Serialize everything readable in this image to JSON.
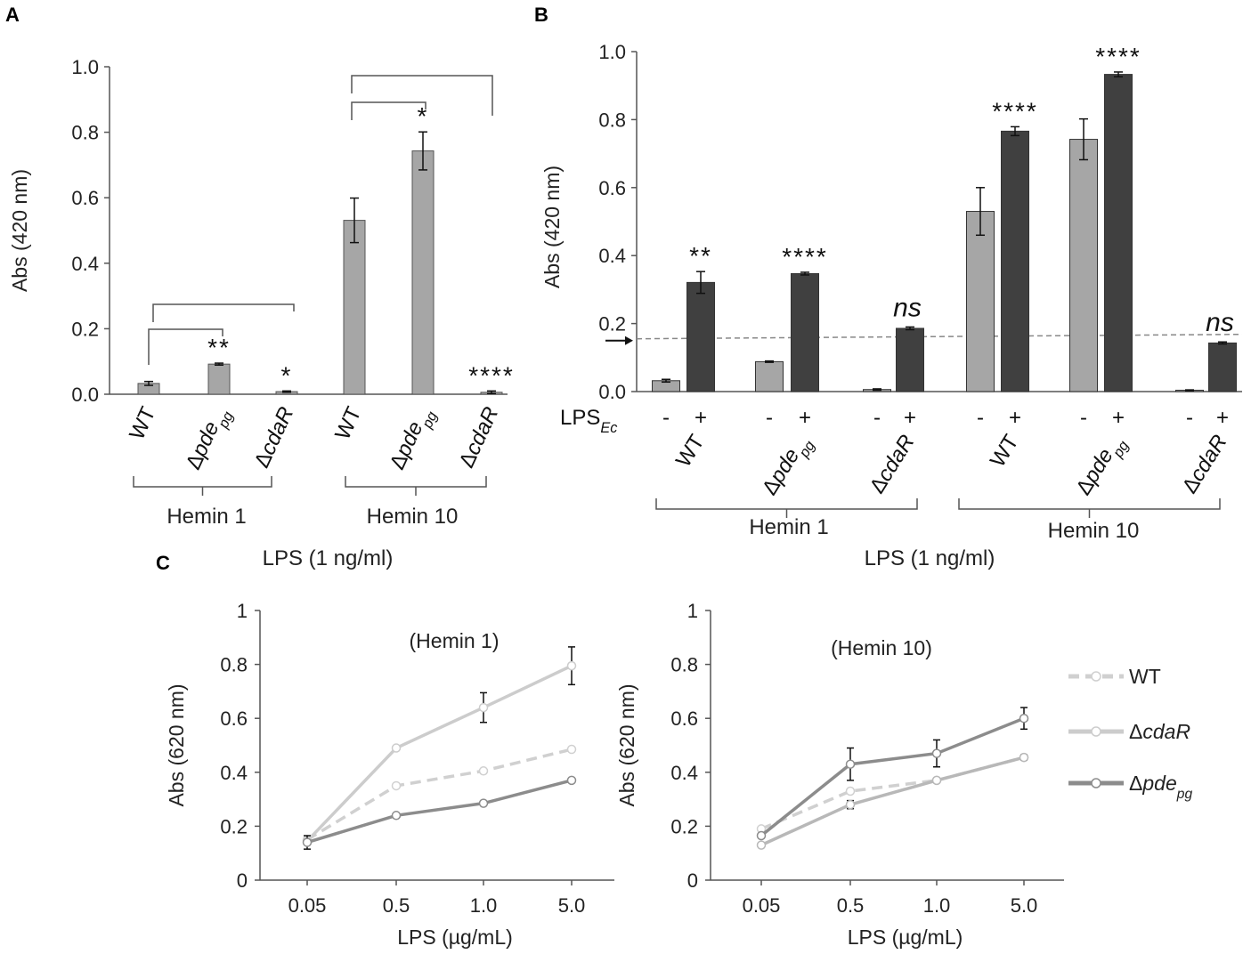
{
  "figure": {
    "panel_a_letter": "A",
    "panel_b_letter": "B",
    "panel_c_letter": "C"
  },
  "chart_data": [
    {
      "panel": "A",
      "type": "bar",
      "ylabel": "Abs (420 nm)",
      "ylim": [
        0,
        1.0
      ],
      "yticks": [
        "0.0",
        "0.2",
        "0.4",
        "0.6",
        "0.8",
        "1.0"
      ],
      "xlabel": "LPS (1 ng/ml)",
      "bar_color": "#a6a6a6",
      "bars": [
        {
          "label": "WT",
          "sub": "",
          "group": "Hemin 1",
          "value": 0.033,
          "err": 0.006,
          "sig": ""
        },
        {
          "label": "Δpde",
          "sub": "pg",
          "group": "Hemin 1",
          "value": 0.092,
          "err": 0.003,
          "sig": "**"
        },
        {
          "label": "ΔcdaR",
          "sub": "",
          "group": "Hemin 1",
          "value": 0.008,
          "err": 0.002,
          "sig": "*"
        },
        {
          "label": "WT",
          "sub": "",
          "group": "Hemin 10",
          "value": 0.531,
          "err": 0.068,
          "sig": ""
        },
        {
          "label": "Δpde",
          "sub": "pg",
          "group": "Hemin 10",
          "value": 0.743,
          "err": 0.058,
          "sig": "*"
        },
        {
          "label": "ΔcdaR",
          "sub": "",
          "group": "Hemin 10",
          "value": 0.006,
          "err": 0.004,
          "sig": "****"
        }
      ],
      "groups": [
        "Hemin 1",
        "Hemin 10"
      ]
    },
    {
      "panel": "B",
      "type": "bar",
      "ylabel": "Abs (420 nm)",
      "ylim": [
        0,
        1.0
      ],
      "yticks": [
        "0.0",
        "0.2",
        "0.4",
        "0.6",
        "0.8",
        "1.0"
      ],
      "xlabel": "LPS (1 ng/ml)",
      "lps_label": "LPS",
      "lps_sub": "Ec",
      "threshold": 0.15,
      "series": [
        {
          "name": "-",
          "color": "#a6a6a6",
          "values": [
            0.032,
            0.088,
            0.006,
            0.53,
            0.742,
            0.004
          ],
          "err": [
            0.004,
            0.002,
            0.002,
            0.07,
            0.06,
            0.001
          ]
        },
        {
          "name": "+",
          "color": "#404040",
          "values": [
            0.321,
            0.347,
            0.186,
            0.766,
            0.933,
            0.143
          ],
          "err": [
            0.032,
            0.004,
            0.004,
            0.013,
            0.007,
            0.003
          ]
        }
      ],
      "categories": [
        {
          "label": "WT",
          "sub": ""
        },
        {
          "label": "Δpde",
          "sub": "pg"
        },
        {
          "label": "ΔcdaR",
          "sub": ""
        },
        {
          "label": "WT",
          "sub": ""
        },
        {
          "label": "Δpde",
          "sub": "pg"
        },
        {
          "label": "ΔcdaR",
          "sub": ""
        }
      ],
      "sig": [
        "**",
        "****",
        "ns",
        "****",
        "****",
        "ns"
      ],
      "groups": [
        "Hemin 1",
        "Hemin 10"
      ]
    },
    {
      "panel": "C1",
      "type": "line",
      "title": "(Hemin 1)",
      "ylabel": "Abs (620 nm)",
      "xlabel": "LPS (µg/mL)",
      "x": [
        "0.05",
        "0.5",
        "1.0",
        "5.0"
      ],
      "ylim": [
        0,
        1
      ],
      "yticks": [
        "0",
        "0.2",
        "0.4",
        "0.6",
        "0.8",
        "1"
      ],
      "series": [
        {
          "name": "WT",
          "color": "#d0d0d0",
          "dash": true,
          "values": [
            0.15,
            0.35,
            0.405,
            0.485
          ],
          "err": [
            0,
            0,
            0,
            0
          ]
        },
        {
          "name": "ΔcdaR",
          "color": "#cccccc",
          "dash": false,
          "values": [
            0.145,
            0.49,
            0.64,
            0.795
          ],
          "err": [
            0,
            0,
            0.055,
            0.07
          ]
        },
        {
          "name": "Δpde",
          "color": "#8c8c8c",
          "dash": false,
          "values": [
            0.14,
            0.24,
            0.285,
            0.37
          ],
          "err": [
            0.025,
            0,
            0,
            0
          ]
        }
      ]
    },
    {
      "panel": "C2",
      "type": "line",
      "title": "(Hemin 10)",
      "ylabel": "Abs (620 nm)",
      "xlabel": "LPS (µg/mL)",
      "x": [
        "0.05",
        "0.5",
        "1.0",
        "5.0"
      ],
      "ylim": [
        0,
        1
      ],
      "yticks": [
        "0",
        "0.2",
        "0.4",
        "0.6",
        "0.8",
        "1"
      ],
      "series": [
        {
          "name": "WT",
          "color": "#d0d0d0",
          "dash": true,
          "values": [
            0.19,
            0.33,
            0.37,
            0.455
          ],
          "err": [
            0,
            0,
            0,
            0
          ]
        },
        {
          "name": "ΔcdaR",
          "color": "#b8b8b8",
          "dash": false,
          "values": [
            0.13,
            0.28,
            0.37,
            0.455
          ],
          "err": [
            0,
            0.015,
            0,
            0.01
          ]
        },
        {
          "name": "Δpde",
          "color": "#8c8c8c",
          "dash": false,
          "values": [
            0.165,
            0.43,
            0.47,
            0.6
          ],
          "err": [
            0,
            0.06,
            0.05,
            0.04
          ]
        }
      ]
    }
  ],
  "legend": [
    {
      "name": "WT",
      "sub": "",
      "color": "#d0d0d0",
      "dash": true
    },
    {
      "name": "ΔcdaR",
      "sub": "",
      "color": "#cccccc",
      "dash": false
    },
    {
      "name": "Δpde",
      "sub": "pg",
      "color": "#8c8c8c",
      "dash": false
    }
  ]
}
